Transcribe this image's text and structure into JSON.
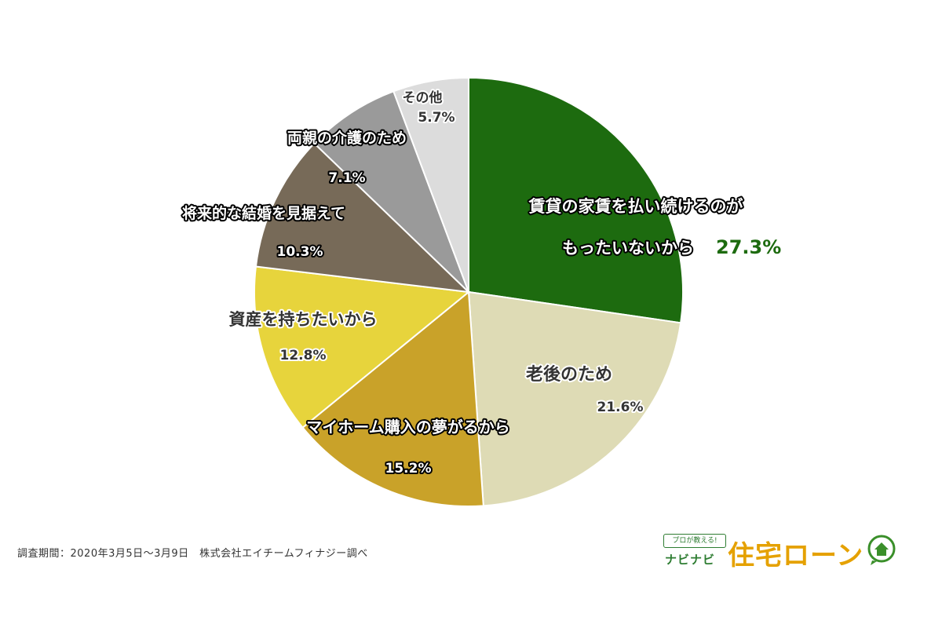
{
  "chart_data": {
    "type": "pie",
    "start_angle_deg": 0,
    "direction": "clockwise",
    "slices": [
      {
        "label": "賃貸の家賃を払い続けるのがもったいないから",
        "label_lines": [
          "賃貸の家賃を払い続けるのが",
          "もったいないから"
        ],
        "value": 27.3,
        "value_text": "27.3%",
        "color": "#1d6b0f",
        "text_color": "#ffffff",
        "value_color": "#1d6b0f"
      },
      {
        "label": "老後のため",
        "label_lines": [
          "老後のため"
        ],
        "value": 21.6,
        "value_text": "21.6%",
        "color": "#dedbb5",
        "text_color": "#333333",
        "value_color": "#333333"
      },
      {
        "label": "マイホーム購入の夢がるから",
        "label_lines": [
          "マイホーム購入の夢がるから"
        ],
        "value": 15.2,
        "value_text": "15.2%",
        "color": "#c9a229",
        "text_color": "#ffffff",
        "value_color": "#ffffff"
      },
      {
        "label": "資産を持ちたいから",
        "label_lines": [
          "資産を持ちたいから"
        ],
        "value": 12.8,
        "value_text": "12.8%",
        "color": "#e7d43c",
        "text_color": "#333333",
        "value_color": "#333333"
      },
      {
        "label": "将来的な結婚を見据えて",
        "label_lines": [
          "将来的な結婚を見据えて"
        ],
        "value": 10.3,
        "value_text": "10.3%",
        "color": "#776a58",
        "text_color": "#ffffff",
        "value_color": "#ffffff"
      },
      {
        "label": "両親の介護のため",
        "label_lines": [
          "両親の介護のため"
        ],
        "value": 7.1,
        "value_text": "7.1%",
        "color": "#9a9a9a",
        "text_color": "#ffffff",
        "value_color": "#ffffff"
      },
      {
        "label": "その他",
        "label_lines": [
          "その他"
        ],
        "value": 5.7,
        "value_text": "5.7%",
        "color": "#dcdcdc",
        "text_color": "#333333",
        "value_color": "#333333"
      }
    ]
  },
  "source": "調査期間：2020年3月5日〜3月9日　株式会社エイチームフィナジー調べ",
  "logo": {
    "badge": "プロが教える!",
    "sub": "ナビナビ",
    "main": "住宅ローン"
  }
}
